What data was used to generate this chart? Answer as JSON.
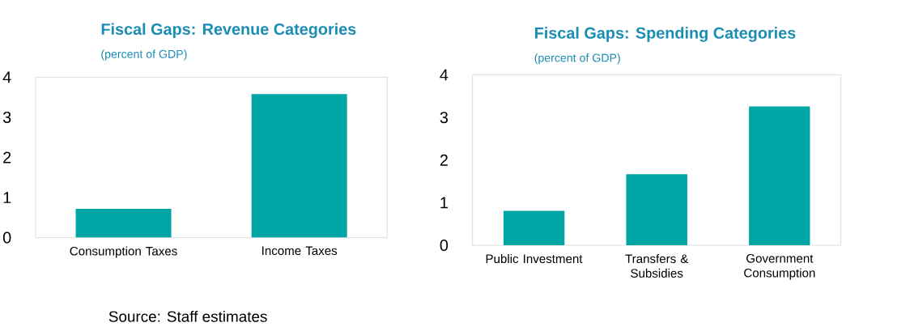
{
  "chart_data": [
    {
      "type": "bar",
      "title": "Fiscal Gaps: Revenue Categories",
      "subtitle": "(percent of GDP)",
      "categories": [
        "Consumption Taxes",
        "Income Taxes"
      ],
      "values": [
        0.72,
        3.58
      ],
      "color": "#00a6a6",
      "ylim": [
        0,
        4
      ],
      "yticks": [
        0,
        1,
        2,
        3,
        4
      ],
      "annotations": [
        "Source: Staff estimates"
      ]
    },
    {
      "type": "bar",
      "title": "Fiscal Gaps: Spending Categories",
      "subtitle": "(percent of GDP)",
      "categories": [
        "Public Investment",
        "Transfers & Subsidies",
        "Government Consumption"
      ],
      "values": [
        0.81,
        1.67,
        3.26
      ],
      "color": "#00a6a6",
      "ylim": [
        0,
        4
      ],
      "yticks": [
        0,
        1,
        2,
        3,
        4
      ]
    }
  ]
}
